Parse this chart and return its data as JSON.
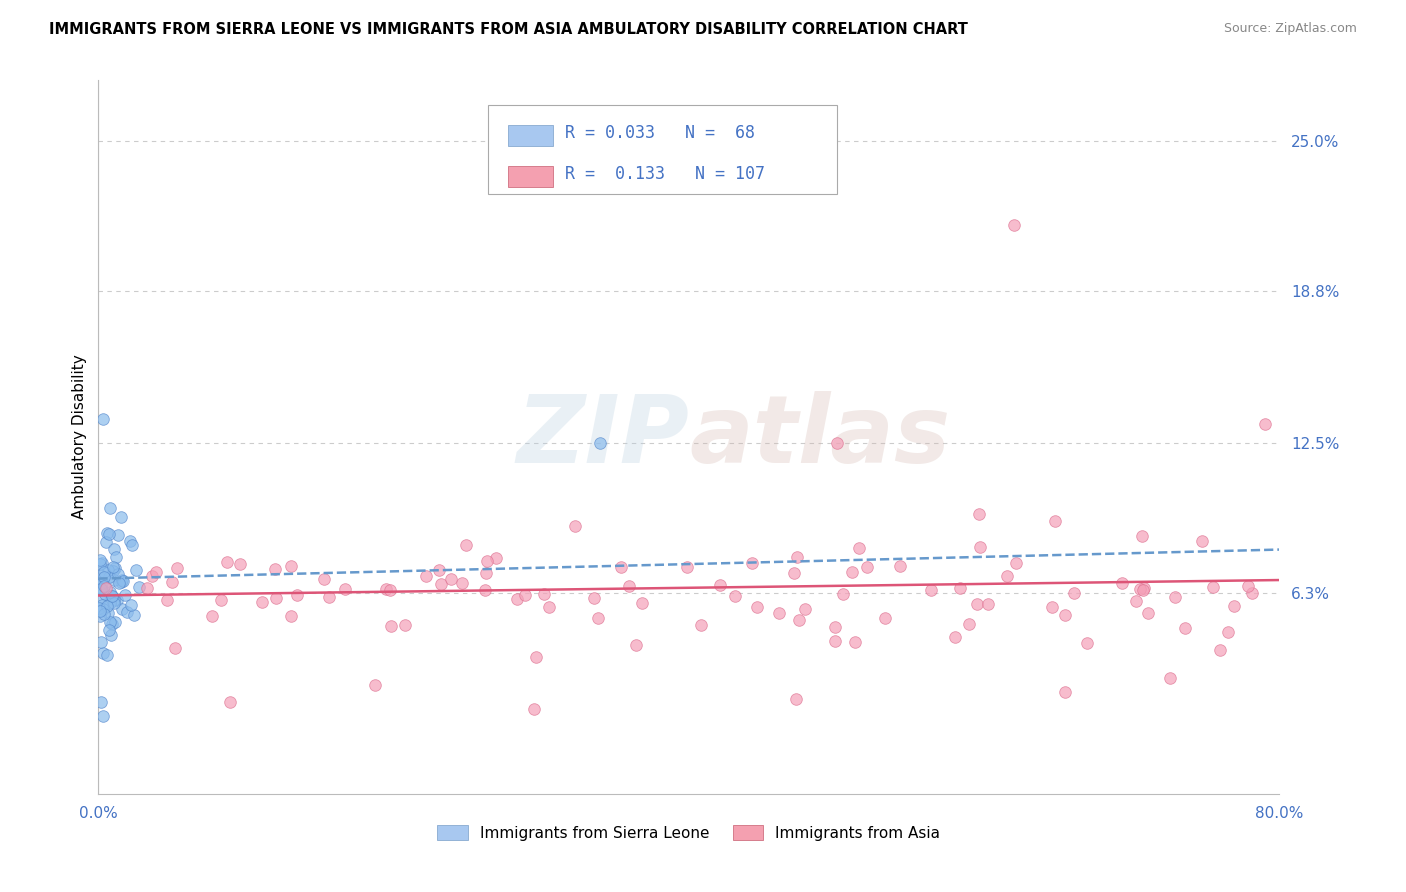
{
  "title": "IMMIGRANTS FROM SIERRA LEONE VS IMMIGRANTS FROM ASIA AMBULATORY DISABILITY CORRELATION CHART",
  "source": "Source: ZipAtlas.com",
  "ylabel": "Ambulatory Disability",
  "ytick_labels": [
    "6.3%",
    "12.5%",
    "18.8%",
    "25.0%"
  ],
  "ytick_values": [
    0.063,
    0.125,
    0.188,
    0.25
  ],
  "xlim": [
    0.0,
    0.8
  ],
  "ylim": [
    -0.02,
    0.275
  ],
  "legend_entries": [
    {
      "label_r": "R = 0.033",
      "label_n": "N =  68",
      "color": "#a8c8f0",
      "edge": "#88aad0"
    },
    {
      "label_r": "R =  0.133",
      "label_n": "N = 107",
      "color": "#f4a0b0",
      "edge": "#d07080"
    }
  ],
  "series1_color": "#8bbcec",
  "series2_color": "#f4a0b8",
  "series1_edge": "#5588cc",
  "series2_edge": "#dd7090",
  "trendline1_color": "#6699cc",
  "trendline2_color": "#dd5577",
  "watermark": "ZIPatlas",
  "watermark_zip_color": "#c8d8e8",
  "watermark_atlas_color": "#d8c8c0",
  "bottom_legend": [
    {
      "label": "Immigrants from Sierra Leone",
      "color": "#a8c8f0",
      "edge": "#88aad0"
    },
    {
      "label": "Immigrants from Asia",
      "color": "#f4a0b0",
      "edge": "#d07080"
    }
  ]
}
